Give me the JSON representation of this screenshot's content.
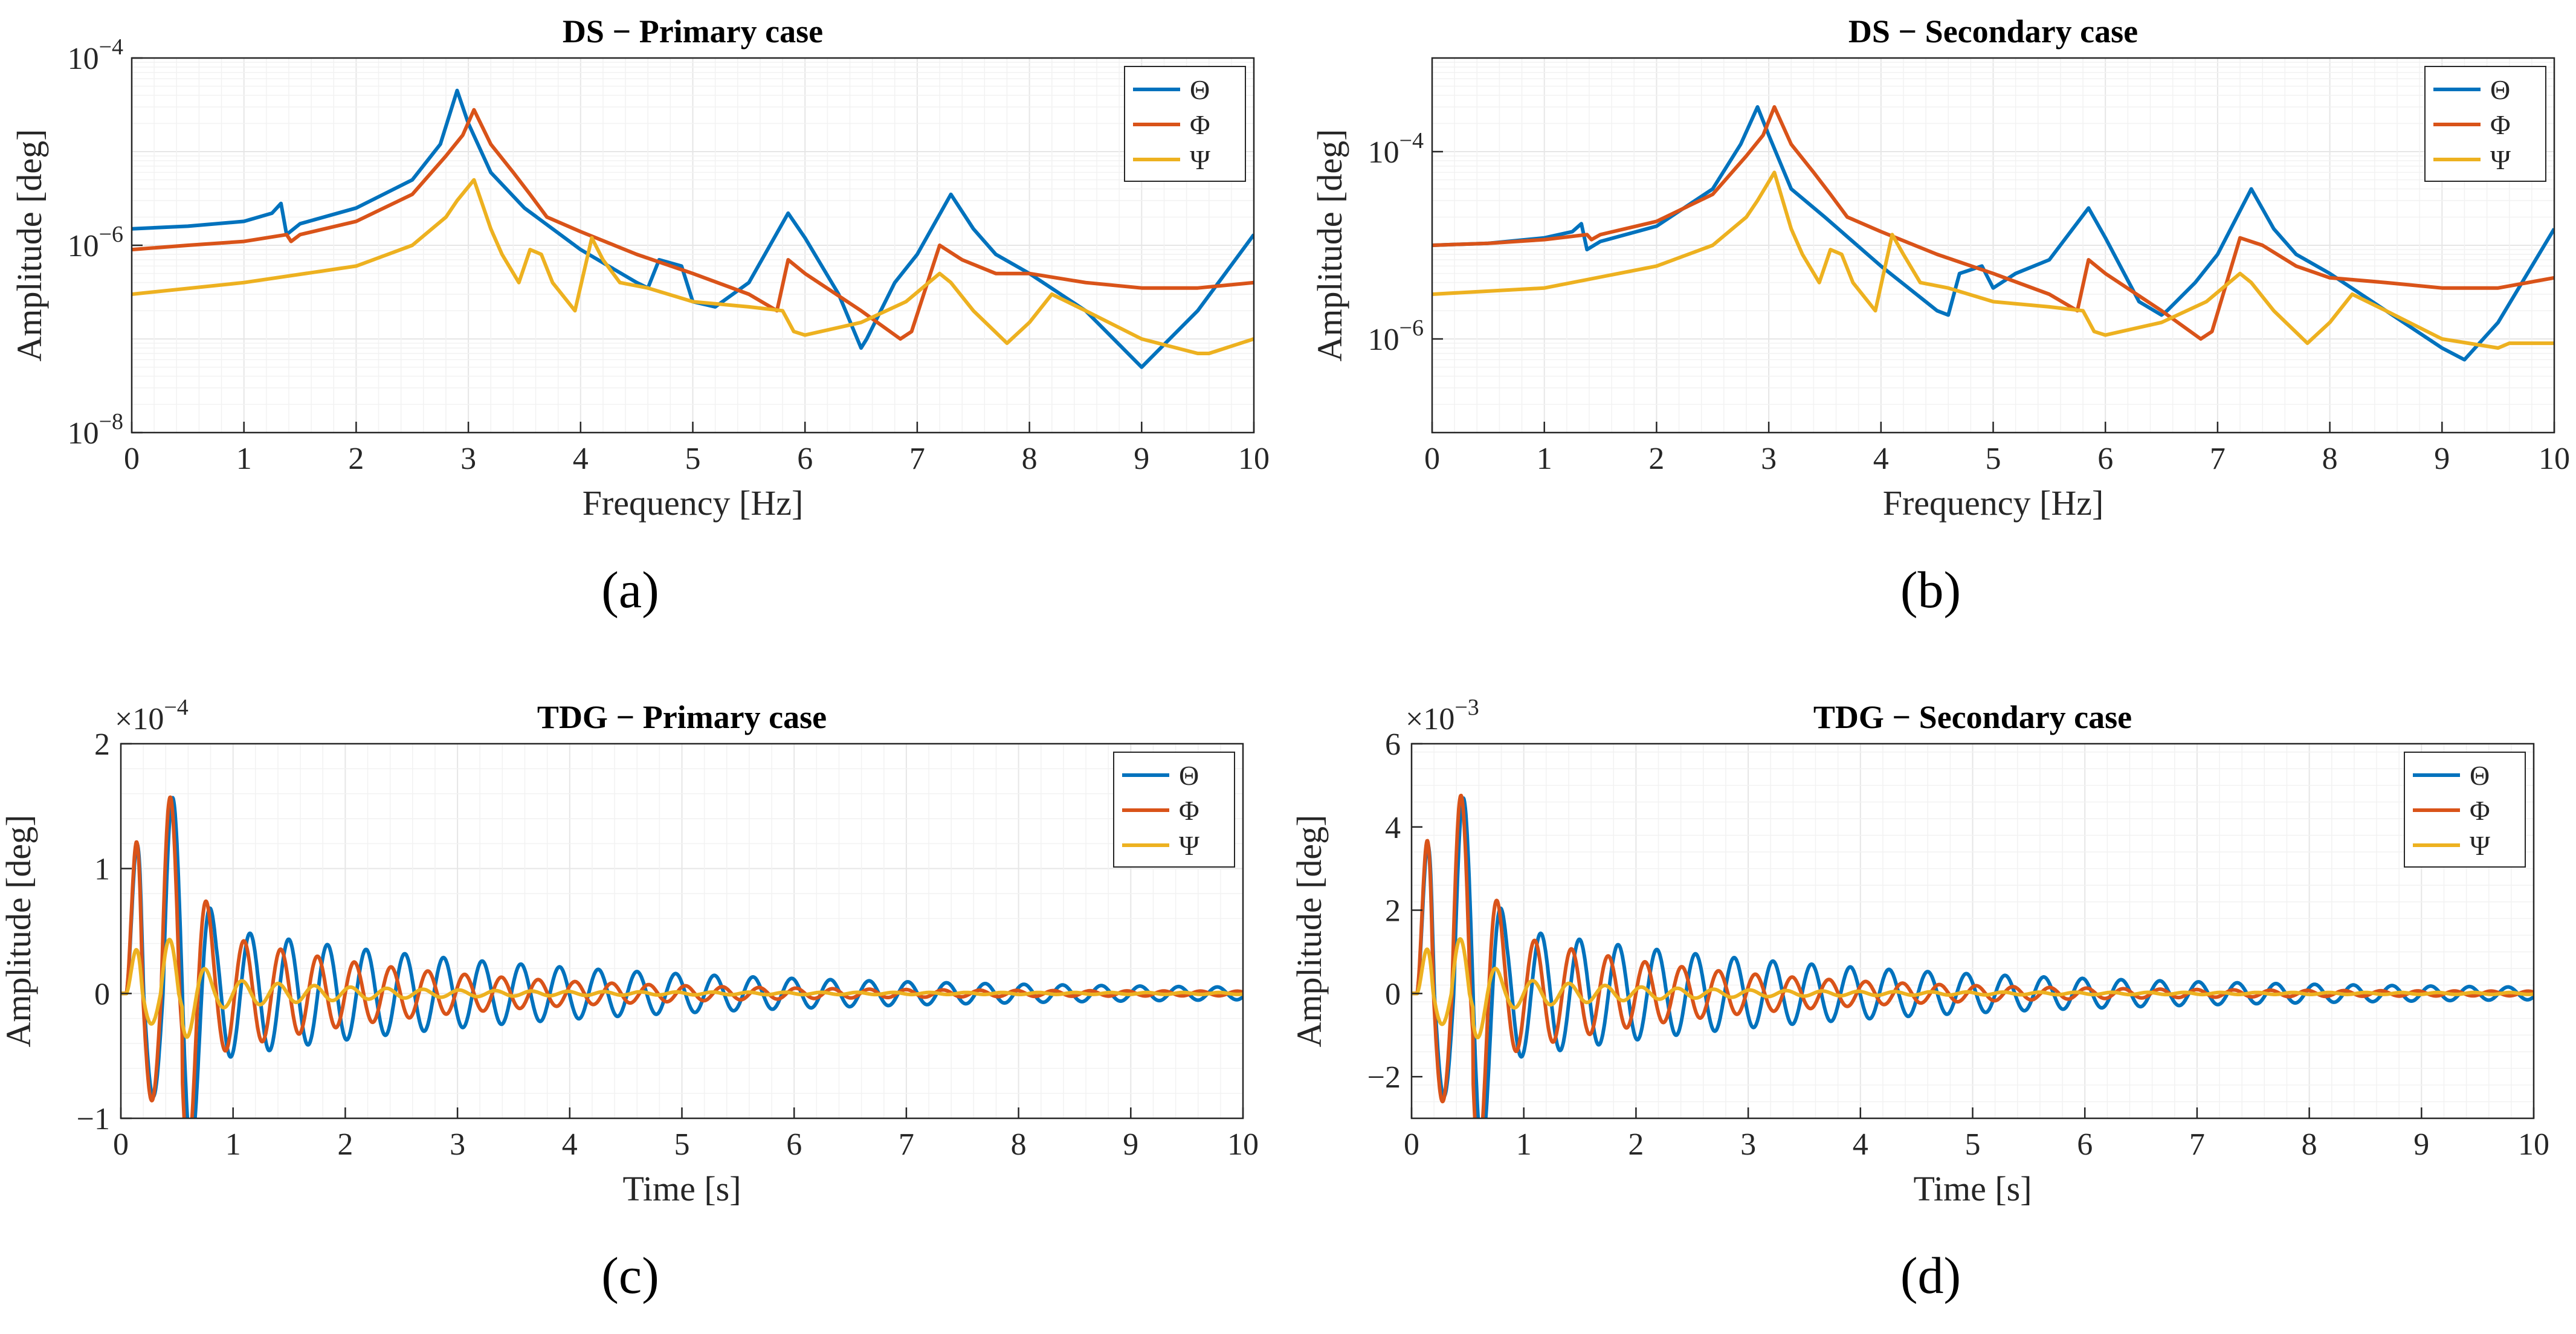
{
  "colors": {
    "theta": "#0072BD",
    "phi": "#D95319",
    "psi": "#EDB120",
    "grid": "#e6e6e6",
    "axis": "#262626"
  },
  "chart_data": [
    {
      "type": "line",
      "title": "DS − Primary case",
      "panel_label": "(a)",
      "xlabel": "Frequency [Hz]",
      "ylabel": "Amplitude [deg]",
      "xlim": [
        0,
        10
      ],
      "ylim": [
        1e-08,
        0.0001
      ],
      "yscale": "log",
      "xticks": [
        "0",
        "1",
        "2",
        "3",
        "4",
        "5",
        "6",
        "7",
        "8",
        "9",
        "10"
      ],
      "ytick_labels": [
        {
          "value": 0.0001,
          "base": "10",
          "exp": "−4"
        },
        {
          "value": 1e-06,
          "base": "10",
          "exp": "−6"
        },
        {
          "value": 1e-08,
          "base": "10",
          "exp": "−8"
        }
      ],
      "grid": true,
      "legend_position": "top-right",
      "series": [
        {
          "name": "Θ",
          "color_key": "theta",
          "x": [
            0,
            0.5,
            1.0,
            1.25,
            1.33,
            1.38,
            1.5,
            2.0,
            2.5,
            2.75,
            2.9,
            3.0,
            3.2,
            3.5,
            4.0,
            4.5,
            4.6,
            4.7,
            4.9,
            5.0,
            5.2,
            5.5,
            5.85,
            6.0,
            6.3,
            6.5,
            6.55,
            6.8,
            7.0,
            7.3,
            7.5,
            7.7,
            8.0,
            8.5,
            9.0,
            9.5,
            10
          ],
          "y": [
            1.5e-06,
            1.6e-06,
            1.8e-06,
            2.2e-06,
            2.8e-06,
            1.3e-06,
            1.7e-06,
            2.5e-06,
            5e-06,
            1.2e-05,
            4.5e-05,
            2e-05,
            6e-06,
            2.5e-06,
            9e-07,
            4e-07,
            3.5e-07,
            7e-07,
            6e-07,
            2.5e-07,
            2.2e-07,
            4e-07,
            2.2e-06,
            1.2e-06,
            3e-07,
            8e-08,
            1e-07,
            4e-07,
            8e-07,
            3.5e-06,
            1.5e-06,
            8e-07,
            5e-07,
            2e-07,
            5e-08,
            2e-07,
            1.3e-06
          ]
        },
        {
          "name": "Φ",
          "color_key": "phi",
          "x": [
            0,
            0.5,
            1.0,
            1.38,
            1.42,
            1.5,
            2.0,
            2.5,
            2.8,
            2.95,
            3.05,
            3.2,
            3.4,
            3.55,
            3.7,
            4.0,
            4.5,
            5.0,
            5.5,
            5.75,
            5.85,
            6.0,
            6.5,
            6.85,
            6.95,
            7.2,
            7.4,
            7.7,
            8.0,
            8.5,
            9.0,
            9.5,
            10
          ],
          "y": [
            9e-07,
            1e-06,
            1.1e-06,
            1.3e-06,
            1.1e-06,
            1.3e-06,
            1.8e-06,
            3.5e-06,
            9e-06,
            1.5e-05,
            2.8e-05,
            1.2e-05,
            6e-06,
            3.5e-06,
            2e-06,
            1.4e-06,
            8e-07,
            5e-07,
            3e-07,
            2e-07,
            7e-07,
            5e-07,
            2e-07,
            1e-07,
            1.2e-07,
            1e-06,
            7e-07,
            5e-07,
            5e-07,
            4e-07,
            3.5e-07,
            3.5e-07,
            4e-07
          ]
        },
        {
          "name": "Ψ",
          "color_key": "psi",
          "x": [
            0,
            1.0,
            2.0,
            2.5,
            2.8,
            2.9,
            3.05,
            3.2,
            3.3,
            3.45,
            3.55,
            3.65,
            3.75,
            3.95,
            4.1,
            4.2,
            4.35,
            4.6,
            5.0,
            5.5,
            5.8,
            5.9,
            6.0,
            6.5,
            6.9,
            7.2,
            7.3,
            7.5,
            7.8,
            8.0,
            8.2,
            8.5,
            9.0,
            9.5,
            9.6,
            10
          ],
          "y": [
            3e-07,
            4e-07,
            6e-07,
            1e-06,
            2e-06,
            3e-06,
            5e-06,
            1.5e-06,
            8e-07,
            4e-07,
            9e-07,
            8e-07,
            4e-07,
            2e-07,
            1.2e-06,
            7e-07,
            4e-07,
            3.5e-07,
            2.5e-07,
            2.2e-07,
            2e-07,
            1.2e-07,
            1.1e-07,
            1.5e-07,
            2.5e-07,
            5e-07,
            4e-07,
            2e-07,
            9e-08,
            1.5e-07,
            3e-07,
            2e-07,
            1e-07,
            7e-08,
            7e-08,
            1e-07
          ]
        }
      ]
    },
    {
      "type": "line",
      "title": "DS − Secondary case",
      "panel_label": "(b)",
      "xlabel": "Frequency [Hz]",
      "ylabel": "Amplitude [deg]",
      "xlim": [
        0,
        10
      ],
      "ylim": [
        1e-07,
        0.001
      ],
      "yscale": "log",
      "xticks": [
        "0",
        "1",
        "2",
        "3",
        "4",
        "5",
        "6",
        "7",
        "8",
        "9",
        "10"
      ],
      "ytick_labels": [
        {
          "value": 0.0001,
          "base": "10",
          "exp": "−4"
        },
        {
          "value": 1e-06,
          "base": "10",
          "exp": "−6"
        }
      ],
      "grid": true,
      "legend_position": "top-right",
      "series": [
        {
          "name": "Θ",
          "color_key": "theta",
          "x": [
            0,
            0.5,
            1.0,
            1.25,
            1.33,
            1.38,
            1.5,
            2.0,
            2.5,
            2.75,
            2.9,
            3.0,
            3.2,
            3.5,
            4.0,
            4.5,
            4.6,
            4.7,
            4.9,
            5.0,
            5.2,
            5.5,
            5.85,
            6.0,
            6.3,
            6.5,
            6.55,
            6.8,
            7.0,
            7.3,
            7.5,
            7.7,
            8.0,
            8.5,
            9.0,
            9.2,
            9.5,
            10
          ],
          "y": [
            1e-05,
            1.05e-05,
            1.2e-05,
            1.4e-05,
            1.7e-05,
            9e-06,
            1.1e-05,
            1.6e-05,
            4e-05,
            0.00012,
            0.0003,
            0.00015,
            4e-05,
            2e-05,
            6e-06,
            2e-06,
            1.8e-06,
            5e-06,
            6e-06,
            3.5e-06,
            5e-06,
            7e-06,
            2.5e-05,
            1.2e-05,
            2.5e-06,
            1.8e-06,
            2e-06,
            4e-06,
            8e-06,
            4e-05,
            1.5e-05,
            8e-06,
            5e-06,
            2e-06,
            8e-07,
            6e-07,
            1.5e-06,
            1.5e-05
          ]
        },
        {
          "name": "Φ",
          "color_key": "phi",
          "x": [
            0,
            0.5,
            1.0,
            1.38,
            1.42,
            1.5,
            2.0,
            2.5,
            2.8,
            2.95,
            3.05,
            3.2,
            3.4,
            3.55,
            3.7,
            4.0,
            4.5,
            5.0,
            5.5,
            5.75,
            5.85,
            6.0,
            6.5,
            6.85,
            6.95,
            7.2,
            7.4,
            7.7,
            8.0,
            8.5,
            9.0,
            9.5,
            10
          ],
          "y": [
            1e-05,
            1.05e-05,
            1.15e-05,
            1.3e-05,
            1.15e-05,
            1.3e-05,
            1.8e-05,
            3.5e-05,
            9e-05,
            0.00015,
            0.0003,
            0.00012,
            6e-05,
            3.5e-05,
            2e-05,
            1.4e-05,
            8e-06,
            5e-06,
            3e-06,
            2e-06,
            7e-06,
            5e-06,
            2e-06,
            1e-06,
            1.2e-06,
            1.2e-05,
            1e-05,
            6e-06,
            4.5e-06,
            4e-06,
            3.5e-06,
            3.5e-06,
            4.5e-06
          ]
        },
        {
          "name": "Ψ",
          "color_key": "psi",
          "x": [
            0,
            1.0,
            2.0,
            2.5,
            2.8,
            2.9,
            3.05,
            3.2,
            3.3,
            3.45,
            3.55,
            3.65,
            3.75,
            3.95,
            4.1,
            4.2,
            4.35,
            4.6,
            5.0,
            5.5,
            5.8,
            5.9,
            6.0,
            6.5,
            6.9,
            7.2,
            7.3,
            7.5,
            7.8,
            8.0,
            8.2,
            8.5,
            9.0,
            9.5,
            9.6,
            10
          ],
          "y": [
            3e-06,
            3.5e-06,
            6e-06,
            1e-05,
            2e-05,
            3e-05,
            6e-05,
            1.5e-05,
            8e-06,
            4e-06,
            9e-06,
            8e-06,
            4e-06,
            2e-06,
            1.3e-05,
            8e-06,
            4e-06,
            3.5e-06,
            2.5e-06,
            2.2e-06,
            2e-06,
            1.2e-06,
            1.1e-06,
            1.5e-06,
            2.5e-06,
            5e-06,
            4e-06,
            2e-06,
            9e-07,
            1.5e-06,
            3e-06,
            2e-06,
            1e-06,
            8e-07,
            9e-07,
            9e-07
          ]
        }
      ]
    },
    {
      "type": "line",
      "title": "TDG − Primary case",
      "panel_label": "(c)",
      "xlabel": "Time [s]",
      "ylabel": "Amplitude [deg]",
      "xlim": [
        0,
        10
      ],
      "ylim": [
        -1,
        2
      ],
      "yscale": "linear",
      "exponent_label": {
        "base": "×10",
        "exp": "−4"
      },
      "xticks": [
        "0",
        "1",
        "2",
        "3",
        "4",
        "5",
        "6",
        "7",
        "8",
        "9",
        "10"
      ],
      "yticks": [
        -1,
        0,
        1,
        2
      ],
      "ytick_text": [
        "−1",
        "0",
        "1",
        "2"
      ],
      "grid": true,
      "legend_position": "top-right",
      "series": [
        {
          "name": "Θ",
          "color_key": "theta",
          "amp": 1.72,
          "freq": 2.9,
          "decay": 0.32,
          "floor": 0.06,
          "peak_t": 0.3
        },
        {
          "name": "Φ",
          "color_key": "phi",
          "amp": 1.9,
          "freq": 3.05,
          "decay": 0.55,
          "floor": 0.04,
          "peak_t": 0.3
        },
        {
          "name": "Ψ",
          "color_key": "psi",
          "amp": 0.56,
          "freq": 3.1,
          "decay": 0.8,
          "floor": 0.02,
          "peak_t": 0.3
        }
      ]
    },
    {
      "type": "line",
      "title": "TDG − Secondary case",
      "panel_label": "(d)",
      "xlabel": "Time [s]",
      "ylabel": "Amplitude [deg]",
      "xlim": [
        0,
        10
      ],
      "ylim": [
        -3,
        6
      ],
      "yscale": "linear",
      "exponent_label": {
        "base": "×10",
        "exp": "−3"
      },
      "xticks": [
        "0",
        "1",
        "2",
        "3",
        "4",
        "5",
        "6",
        "7",
        "8",
        "9",
        "10"
      ],
      "yticks": [
        -2,
        0,
        2,
        4,
        6
      ],
      "ytick_text": [
        "−2",
        "0",
        "2",
        "4",
        "6"
      ],
      "grid": true,
      "legend_position": "top-right",
      "series": [
        {
          "name": "Θ",
          "color_key": "theta",
          "amp": 5.15,
          "freq": 2.9,
          "decay": 0.32,
          "floor": 0.18,
          "peak_t": 0.3
        },
        {
          "name": "Φ",
          "color_key": "phi",
          "amp": 5.75,
          "freq": 3.05,
          "decay": 0.55,
          "floor": 0.12,
          "peak_t": 0.3
        },
        {
          "name": "Ψ",
          "color_key": "psi",
          "amp": 1.7,
          "freq": 3.1,
          "decay": 0.8,
          "floor": 0.06,
          "peak_t": 0.3
        }
      ]
    }
  ]
}
